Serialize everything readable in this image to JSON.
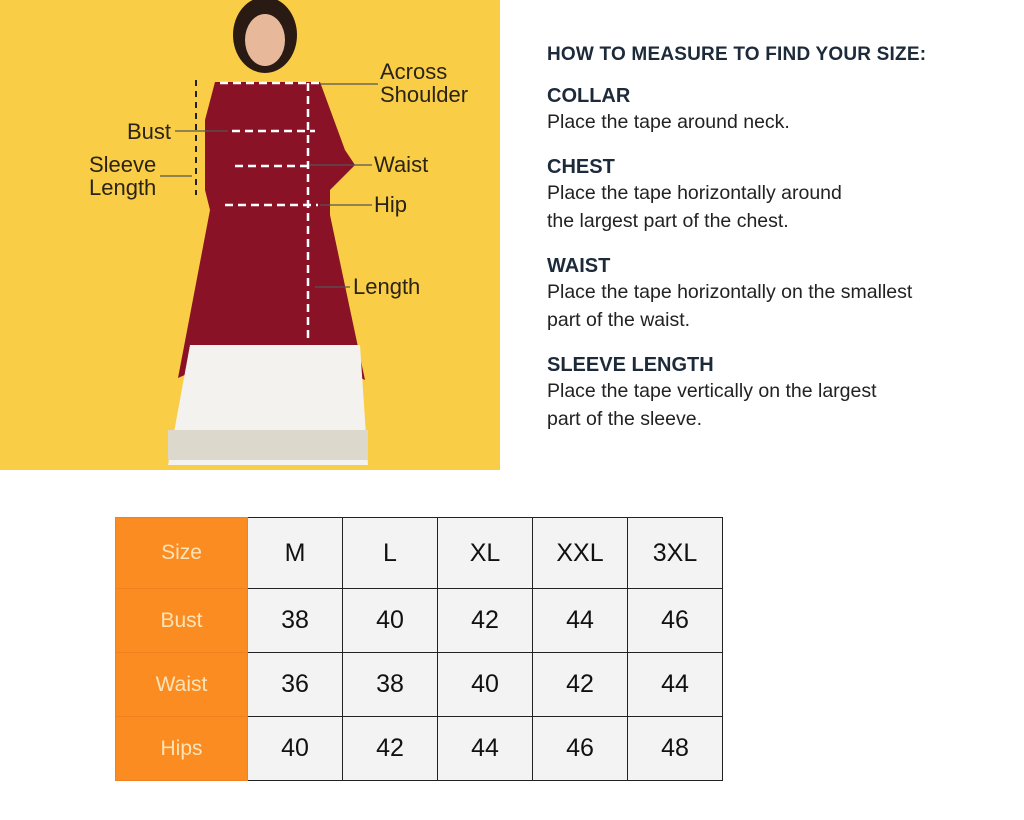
{
  "diagram": {
    "labels": [
      "Across",
      "Shoulder",
      "Bust",
      "Sleeve",
      "Length",
      "Waist",
      "Hip",
      "Length"
    ]
  },
  "guide": {
    "heading": "HOW TO MEASURE TO FIND YOUR SIZE:",
    "sections": [
      {
        "title": "COLLAR",
        "lines": [
          "Place the tape around neck."
        ]
      },
      {
        "title": "CHEST",
        "lines": [
          "Place the tape horizontally around",
          "the largest part of the chest."
        ]
      },
      {
        "title": "WAIST",
        "lines": [
          "Place the tape horizontally on the smallest",
          "part of the waist."
        ]
      },
      {
        "title": "SLEEVE LENGTH",
        "lines": [
          "Place the tape vertically on the largest",
          "part of the sleeve."
        ]
      }
    ]
  },
  "size_chart": {
    "rows": [
      {
        "label": "Size",
        "values": [
          "M",
          "L",
          "XL",
          "XXL",
          "3XL"
        ]
      },
      {
        "label": "Bust",
        "values": [
          "38",
          "40",
          "42",
          "44",
          "46"
        ]
      },
      {
        "label": "Waist",
        "values": [
          "36",
          "38",
          "40",
          "42",
          "44"
        ]
      },
      {
        "label": "Hips",
        "values": [
          "40",
          "42",
          "44",
          "46",
          "48"
        ]
      }
    ]
  },
  "colors": {
    "background": "#f9cd45",
    "header_cell": "#fb8c22",
    "kurta": "#8a1226"
  }
}
